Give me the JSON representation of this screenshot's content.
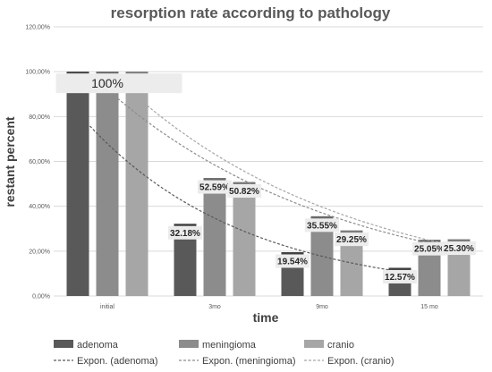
{
  "chart_data": {
    "type": "bar",
    "title": "resorption rate according to pathology",
    "xlabel": "time",
    "ylabel": "restant percent",
    "categories": [
      "initial",
      "3mo",
      "9mo",
      "15 mo"
    ],
    "ylim": [
      0,
      120
    ],
    "yticks": [
      0,
      20,
      40,
      60,
      80,
      100,
      120
    ],
    "ytick_labels": [
      "0,00%",
      "20,00%",
      "40,00%",
      "60,00%",
      "80,00%",
      "100,00%",
      "120,00%"
    ],
    "grid": true,
    "legend_position": "bottom",
    "series": [
      {
        "name": "adenoma",
        "color": "#595959",
        "values": [
          100,
          32.18,
          19.54,
          12.57
        ],
        "labels": [
          "",
          "32.18%",
          "19.54%",
          "12.57%"
        ]
      },
      {
        "name": "meningioma",
        "color": "#8c8c8c",
        "values": [
          100,
          52.59,
          35.55,
          25.05
        ],
        "labels": [
          "",
          "52.59%",
          "35.55%",
          "25.05%"
        ]
      },
      {
        "name": "cranio",
        "color": "#a6a6a6",
        "values": [
          100,
          50.82,
          29.25,
          25.3
        ],
        "labels": [
          "",
          "50.82%",
          "29.25%",
          "25.30%"
        ]
      }
    ],
    "initial_label": "100%",
    "trendlines": [
      {
        "name": "Expon. (adenoma)",
        "series": "adenoma",
        "color": "#595959"
      },
      {
        "name": "Expon. (meningioma)",
        "series": "meningioma",
        "color": "#8c8c8c"
      },
      {
        "name": "Expon. (cranio)",
        "series": "cranio",
        "color": "#a6a6a6"
      }
    ]
  }
}
